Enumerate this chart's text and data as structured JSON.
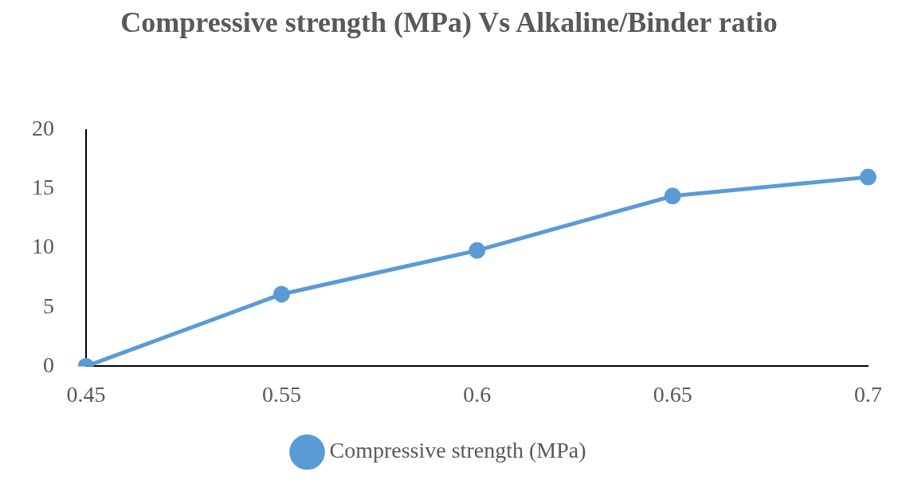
{
  "chart_data": {
    "type": "line",
    "title": "Compressive strength (MPa) Vs Alkaline/Binder ratio",
    "categories": [
      "0.45",
      "0.55",
      "0.6",
      "0.65",
      "0.7"
    ],
    "series": [
      {
        "name": "Compressive strength (MPa)",
        "color": "#5b9bd5",
        "values": [
          0,
          6.1,
          9.8,
          14.4,
          16.0
        ]
      }
    ],
    "ylim": [
      0,
      20
    ],
    "yticks": [
      0,
      5,
      10,
      15,
      20
    ],
    "grid": false,
    "legend": "bottom",
    "marker": "circle",
    "line_style": "solid"
  }
}
